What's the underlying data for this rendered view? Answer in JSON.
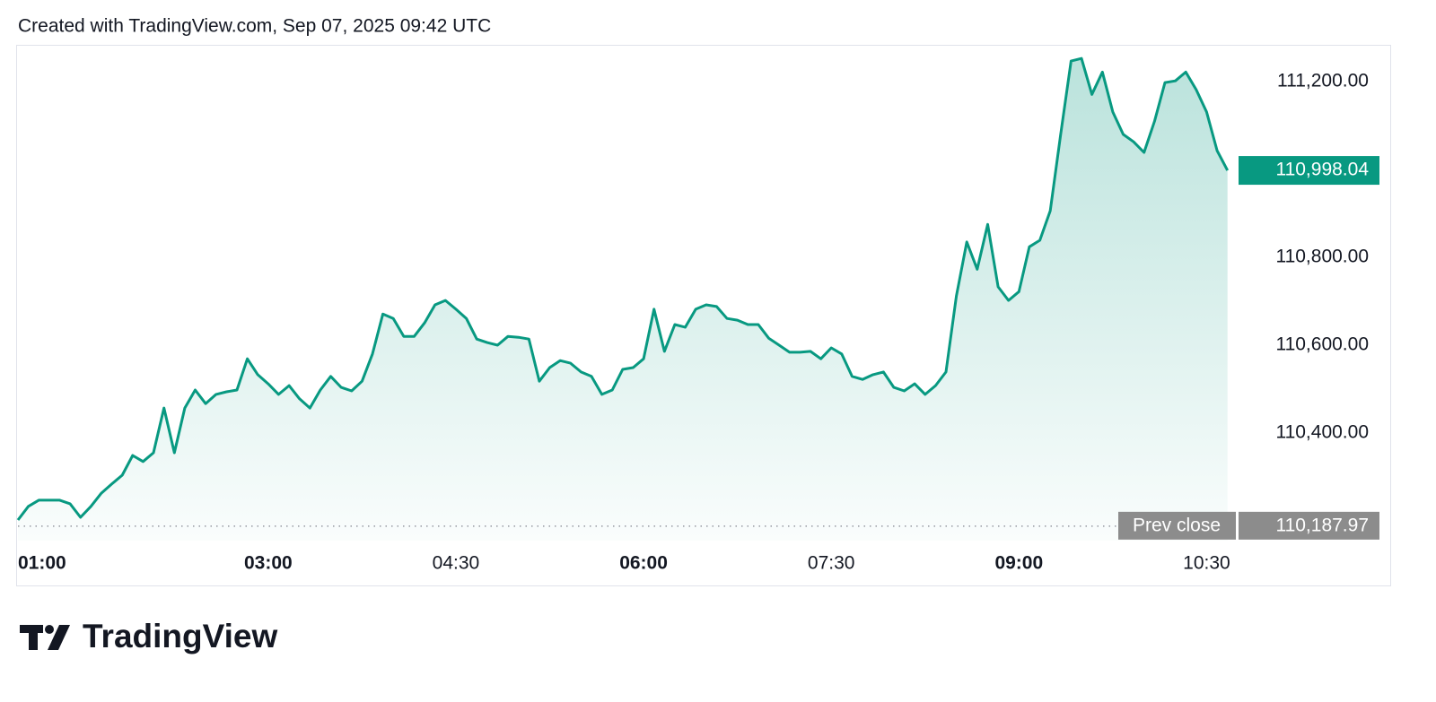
{
  "header": "Created with TradingView.com, Sep 07, 2025 09:42 UTC",
  "brand": "TradingView",
  "chart_data": {
    "type": "area",
    "color": "#089981",
    "grid": false,
    "x": [
      60,
      65,
      70,
      75,
      80,
      85,
      90,
      95,
      100,
      105,
      110,
      115,
      120,
      125,
      130,
      135,
      140,
      145,
      150,
      155,
      160,
      165,
      170,
      175,
      180,
      185,
      190,
      195,
      200,
      205,
      210,
      215,
      220,
      225,
      230,
      235,
      240,
      245,
      250,
      255,
      260,
      265,
      270,
      275,
      280,
      285,
      290,
      295,
      300,
      305,
      310,
      315,
      320,
      325,
      330,
      335,
      340,
      345,
      350,
      355,
      360,
      365,
      370,
      375,
      380,
      385,
      390,
      395,
      400,
      405,
      410,
      415,
      420,
      425,
      430,
      435,
      440,
      445,
      450,
      455,
      460,
      465,
      470,
      475,
      480,
      485,
      490,
      495,
      500,
      505,
      510,
      515,
      520,
      525,
      530,
      535,
      540,
      545,
      550,
      555,
      560,
      565,
      570,
      575,
      580,
      585,
      590,
      595,
      600,
      605,
      610,
      615,
      620,
      625,
      630,
      635,
      640
    ],
    "values": [
      110202,
      110233,
      110247,
      110247,
      110247,
      110239,
      110208,
      110233,
      110263,
      110284,
      110304,
      110349,
      110335,
      110355,
      110457,
      110355,
      110457,
      110498,
      110467,
      110488,
      110494,
      110498,
      110569,
      110533,
      110512,
      110488,
      110508,
      110478,
      110457,
      110498,
      110529,
      110504,
      110496,
      110518,
      110580,
      110671,
      110661,
      110620,
      110620,
      110651,
      110692,
      110702,
      110682,
      110661,
      110614,
      110606,
      110600,
      110620,
      110618,
      110614,
      110518,
      110549,
      110565,
      110559,
      110539,
      110529,
      110488,
      110498,
      110545,
      110549,
      110569,
      110682,
      110586,
      110647,
      110641,
      110682,
      110692,
      110688,
      110661,
      110657,
      110647,
      110647,
      110616,
      110600,
      110584,
      110584,
      110586,
      110569,
      110594,
      110580,
      110529,
      110522,
      110533,
      110539,
      110504,
      110496,
      110512,
      110488,
      110508,
      110539,
      110712,
      110835,
      110773,
      110875,
      110733,
      110702,
      110722,
      110824,
      110839,
      110906,
      111080,
      111247,
      111253,
      111171,
      111222,
      111131,
      111080,
      111063,
      111039,
      111110,
      111198,
      111202,
      111222,
      111182,
      111131,
      111043,
      110998.04
    ],
    "xlim": [
      60,
      641
    ],
    "xticks": [
      {
        "value": 60,
        "label": "01:00"
      },
      {
        "value": 180,
        "label": "03:00"
      },
      {
        "value": 270,
        "label": "04:30"
      },
      {
        "value": 360,
        "label": "06:00"
      },
      {
        "value": 450,
        "label": "07:30"
      },
      {
        "value": 540,
        "label": "09:00"
      },
      {
        "value": 630,
        "label": "10:30"
      }
    ],
    "ylim": [
      110155,
      111284
    ],
    "yticks": [
      {
        "value": 110400,
        "label": "110,400.00"
      },
      {
        "value": 110600,
        "label": "110,600.00"
      },
      {
        "value": 110800,
        "label": "110,800.00"
      },
      {
        "value": 111200,
        "label": "111,200.00"
      }
    ],
    "last_price": {
      "value": 110998.04,
      "label": "110,998.04"
    },
    "prev_close": {
      "title": "Prev close",
      "value": 110187.97,
      "label": "110,187.97"
    }
  }
}
